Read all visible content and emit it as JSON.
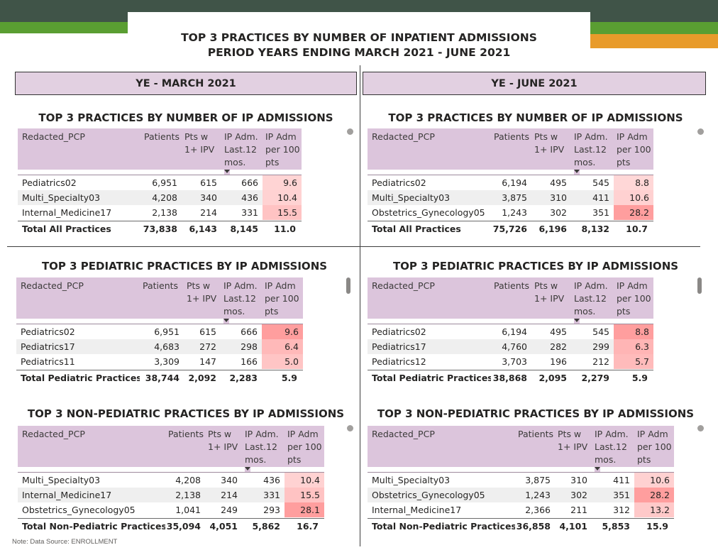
{
  "header": {
    "title_line1": "TOP 3 PRACTICES BY NUMBER OF INPATIENT ADMISSIONS",
    "title_line2": "PERIOD YEARS ENDING MARCH 2021 - JUNE 2021"
  },
  "colors": {
    "header_dark": "#405448",
    "header_green": "#5a9e32",
    "header_orange": "#e89b2a",
    "panel_mauve": "#e2d0e1",
    "table_header": "#dcc5dc"
  },
  "columns": {
    "pcp": "Redacted_PCP",
    "patients": "Patients",
    "ptsw": "Pts w 1+ IPV",
    "ipadm": "IP Adm. Last.12 mos.",
    "per100": "IP Adm per 100 pts"
  },
  "left": {
    "year_label": "YE - MARCH 2021",
    "sections": [
      {
        "title": "TOP 3 PRACTICES BY NUMBER OF IP ADMISSIONS",
        "rows": [
          {
            "pcp": "Pediatrics02",
            "patients": "6,951",
            "ptsw": "615",
            "ipadm": "666",
            "per100": "9.6",
            "level": 0.34
          },
          {
            "pcp": "Multi_Specialty03",
            "patients": "4,208",
            "ptsw": "340",
            "ipadm": "436",
            "per100": "10.4",
            "level": 0.37
          },
          {
            "pcp": "Internal_Medicine17",
            "patients": "2,138",
            "ptsw": "214",
            "ipadm": "331",
            "per100": "15.5",
            "level": 0.55
          }
        ],
        "total": {
          "pcp": "Total All Practices",
          "patients": "73,838",
          "ptsw": "6,143",
          "ipadm": "8,145",
          "per100": "11.0"
        }
      },
      {
        "title": "TOP 3 PEDIATRIC PRACTICES BY IP ADMISSIONS",
        "rows": [
          {
            "pcp": "Pediatrics02",
            "patients": "6,951",
            "ptsw": "615",
            "ipadm": "666",
            "per100": "9.6",
            "level": 1.0
          },
          {
            "pcp": "Pediatrics17",
            "patients": "4,683",
            "ptsw": "272",
            "ipadm": "298",
            "per100": "6.4",
            "level": 0.67
          },
          {
            "pcp": "Pediatrics11",
            "patients": "3,309",
            "ptsw": "147",
            "ipadm": "166",
            "per100": "5.0",
            "level": 0.52
          }
        ],
        "total": {
          "pcp": "Total Pediatric Practices",
          "patients": "38,744",
          "ptsw": "2,092",
          "ipadm": "2,283",
          "per100": "5.9"
        }
      },
      {
        "title": "TOP 3 NON-PEDIATRIC PRACTICES BY IP ADMISSIONS",
        "rows": [
          {
            "pcp": "Multi_Specialty03",
            "patients": "4,208",
            "ptsw": "340",
            "ipadm": "436",
            "per100": "10.4",
            "level": 0.37
          },
          {
            "pcp": "Internal_Medicine17",
            "patients": "2,138",
            "ptsw": "214",
            "ipadm": "331",
            "per100": "15.5",
            "level": 0.55
          },
          {
            "pcp": "Obstetrics_Gynecology05",
            "patients": "1,041",
            "ptsw": "249",
            "ipadm": "293",
            "per100": "28.1",
            "level": 1.0
          }
        ],
        "total": {
          "pcp": "Total Non-Pediatric Practices",
          "patients": "35,094",
          "ptsw": "4,051",
          "ipadm": "5,862",
          "per100": "16.7"
        }
      }
    ]
  },
  "right": {
    "year_label": "YE - JUNE 2021",
    "sections": [
      {
        "title": "TOP 3 PRACTICES BY NUMBER OF IP ADMISSIONS",
        "rows": [
          {
            "pcp": "Pediatrics02",
            "patients": "6,194",
            "ptsw": "495",
            "ipadm": "545",
            "per100": "8.8",
            "level": 0.31
          },
          {
            "pcp": "Multi_Specialty03",
            "patients": "3,875",
            "ptsw": "310",
            "ipadm": "411",
            "per100": "10.6",
            "level": 0.38
          },
          {
            "pcp": "Obstetrics_Gynecology05",
            "patients": "1,243",
            "ptsw": "302",
            "ipadm": "351",
            "per100": "28.2",
            "level": 1.0
          }
        ],
        "total": {
          "pcp": "Total All Practices",
          "patients": "75,726",
          "ptsw": "6,196",
          "ipadm": "8,132",
          "per100": "10.7"
        }
      },
      {
        "title": "TOP 3 PEDIATRIC PRACTICES BY IP ADMISSIONS",
        "rows": [
          {
            "pcp": "Pediatrics02",
            "patients": "6,194",
            "ptsw": "495",
            "ipadm": "545",
            "per100": "8.8",
            "level": 1.0
          },
          {
            "pcp": "Pediatrics17",
            "patients": "4,760",
            "ptsw": "282",
            "ipadm": "299",
            "per100": "6.3",
            "level": 0.72
          },
          {
            "pcp": "Pediatrics12",
            "patients": "3,703",
            "ptsw": "196",
            "ipadm": "212",
            "per100": "5.7",
            "level": 0.65
          }
        ],
        "total": {
          "pcp": "Total Pediatric Practices",
          "patients": "38,868",
          "ptsw": "2,095",
          "ipadm": "2,279",
          "per100": "5.9"
        }
      },
      {
        "title": "TOP 3 NON-PEDIATRIC PRACTICES BY IP ADMISSIONS",
        "rows": [
          {
            "pcp": "Multi_Specialty03",
            "patients": "3,875",
            "ptsw": "310",
            "ipadm": "411",
            "per100": "10.6",
            "level": 0.38
          },
          {
            "pcp": "Obstetrics_Gynecology05",
            "patients": "1,243",
            "ptsw": "302",
            "ipadm": "351",
            "per100": "28.2",
            "level": 1.0
          },
          {
            "pcp": "Internal_Medicine17",
            "patients": "2,366",
            "ptsw": "211",
            "ipadm": "312",
            "per100": "13.2",
            "level": 0.47
          }
        ],
        "total": {
          "pcp": "Total Non-Pediatric Practices",
          "patients": "36,858",
          "ptsw": "4,101",
          "ipadm": "5,853",
          "per100": "15.9"
        }
      }
    ]
  },
  "footer": {
    "note": "Note: Data Source: ENROLLMENT"
  }
}
